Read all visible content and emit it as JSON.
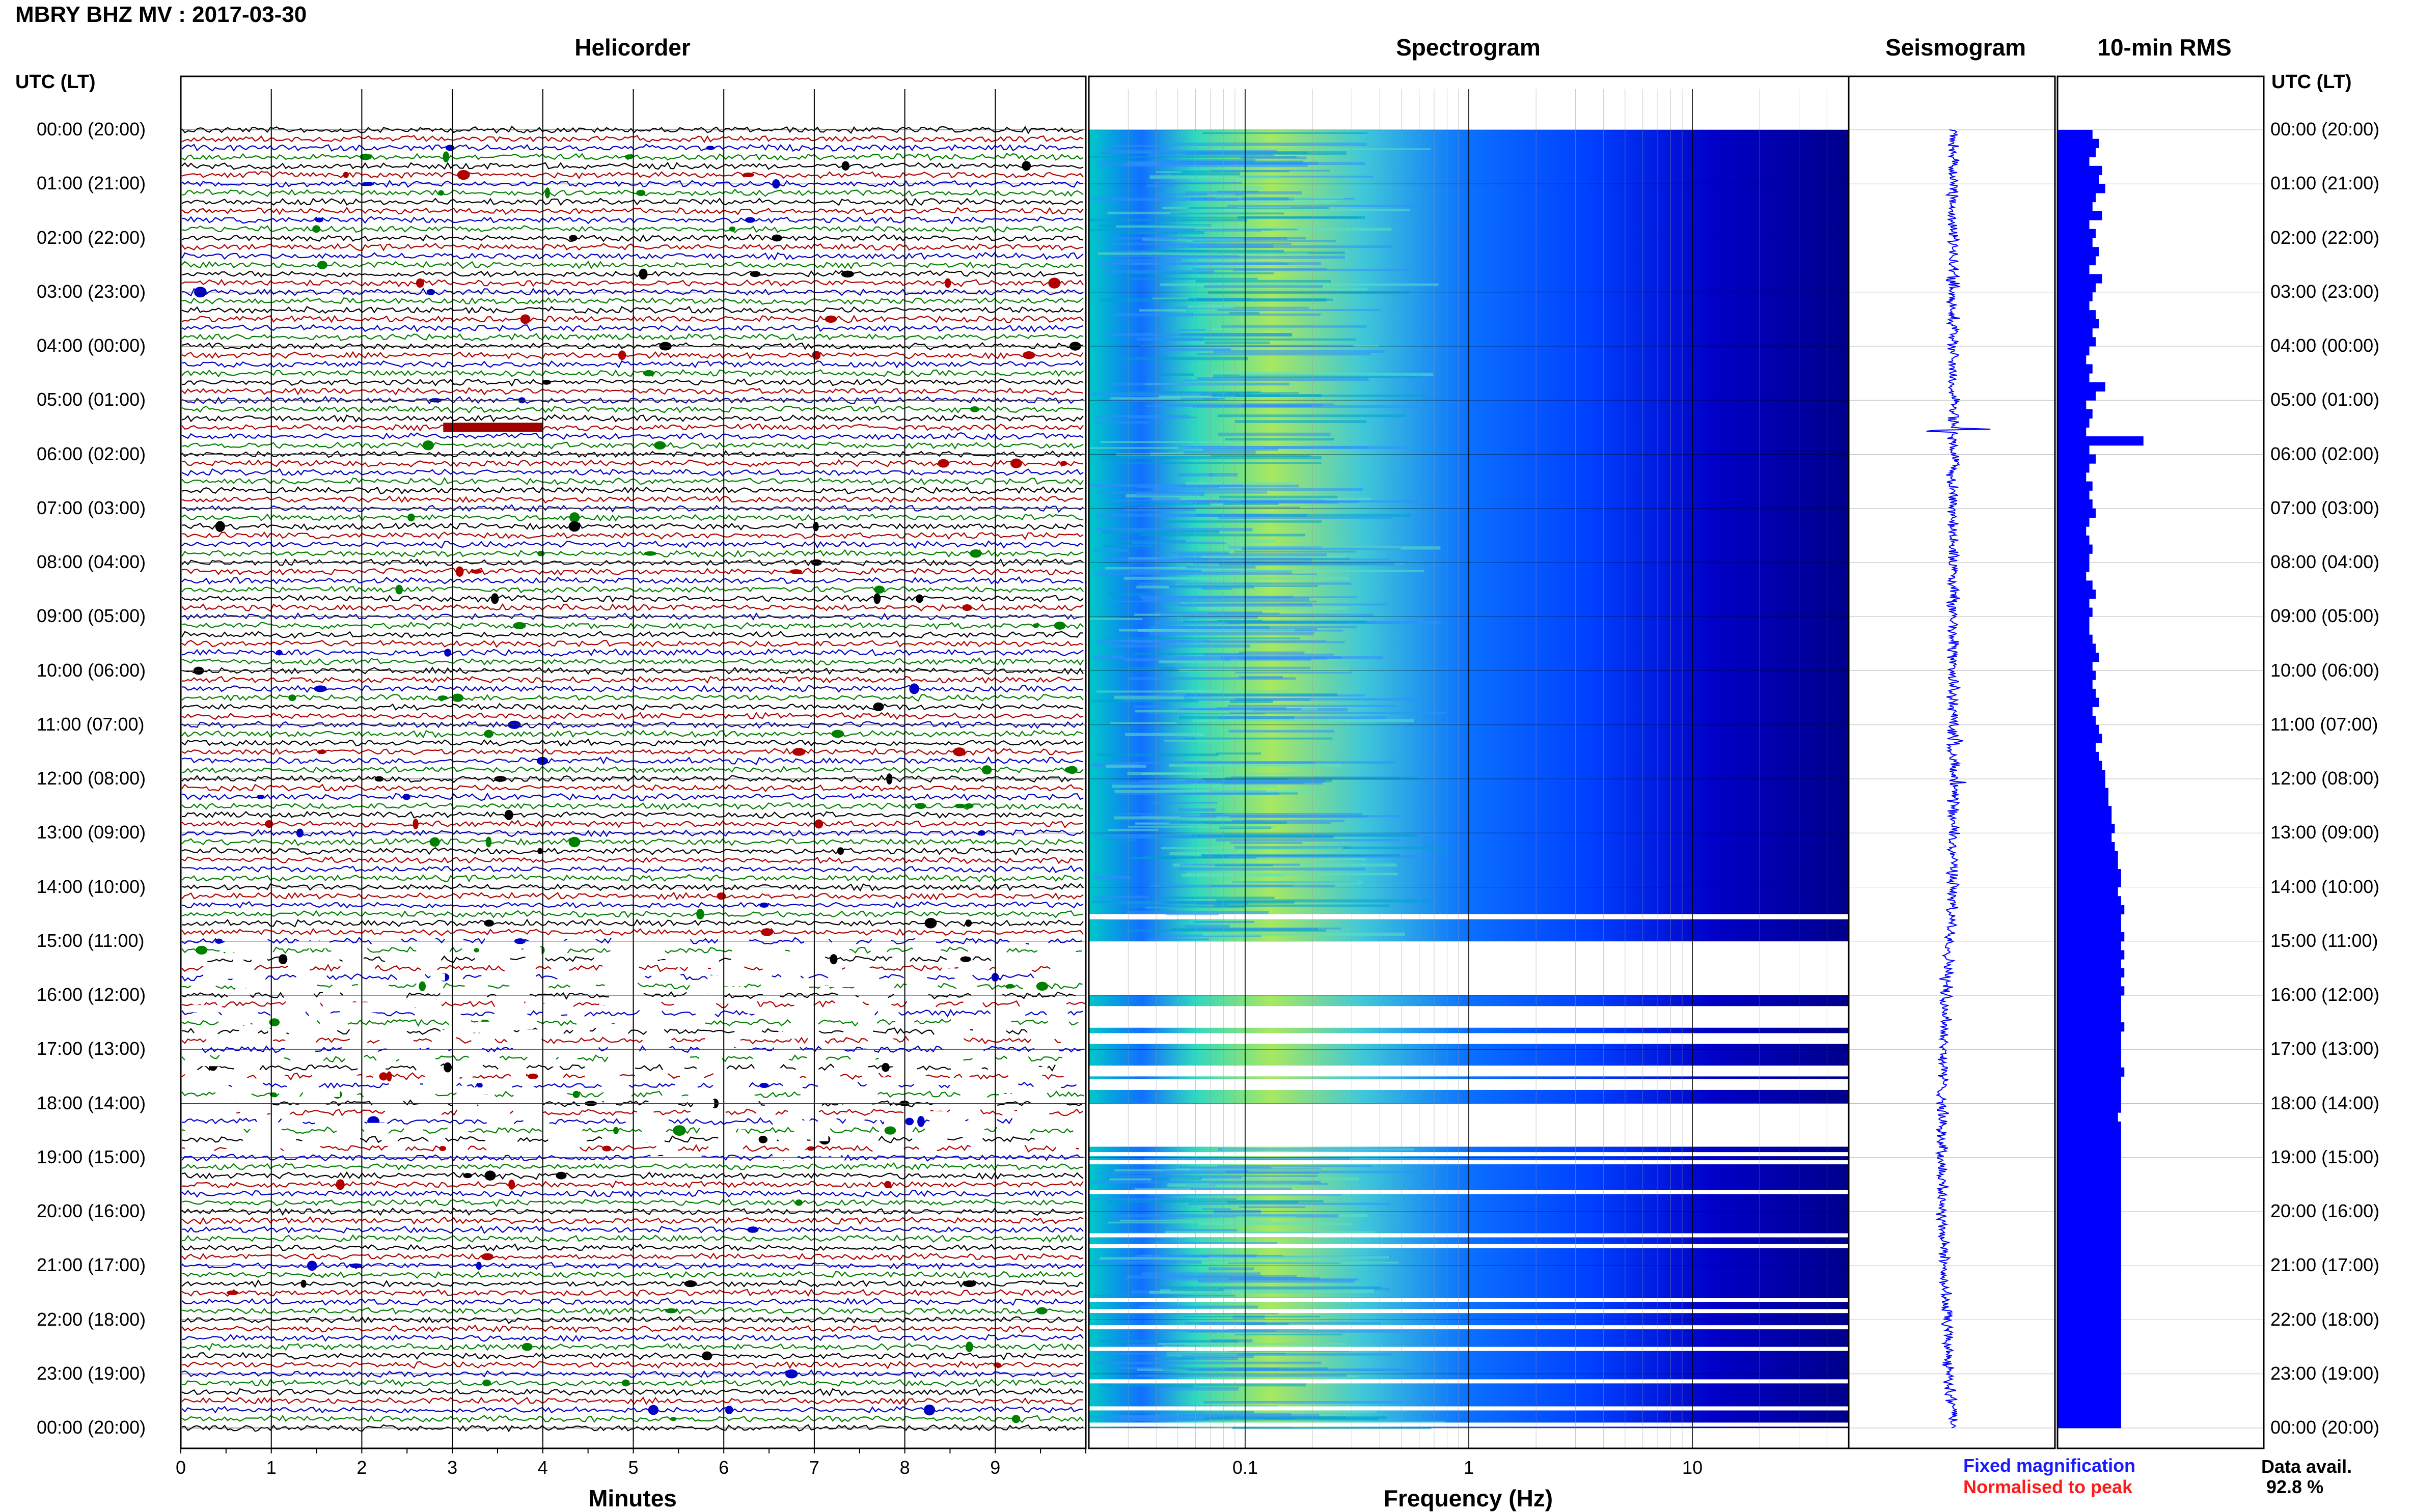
{
  "header": {
    "station_title": "MBRY BHZ MV : 2017-03-30",
    "utc_label_left": "UTC (LT)",
    "utc_label_right": "UTC (LT)"
  },
  "panels": {
    "helicorder": "Helicorder",
    "spectrogram": "Spectrogram",
    "seismogram": "Seismogram",
    "rms": "10-min RMS"
  },
  "axes": {
    "minutes_label": "Minutes",
    "minutes_ticks": [
      "0",
      "1",
      "2",
      "3",
      "4",
      "5",
      "6",
      "7",
      "8",
      "9"
    ],
    "frequency_label": "Frequency (Hz)",
    "frequency_ticks": [
      "0.1",
      "1",
      "10"
    ]
  },
  "time_labels": [
    "00:00 (20:00)",
    "01:00 (21:00)",
    "02:00 (22:00)",
    "03:00 (23:00)",
    "04:00 (00:00)",
    "05:00 (01:00)",
    "06:00 (02:00)",
    "07:00 (03:00)",
    "08:00 (04:00)",
    "09:00 (05:00)",
    "10:00 (06:00)",
    "11:00 (07:00)",
    "12:00 (08:00)",
    "13:00 (09:00)",
    "14:00 (10:00)",
    "15:00 (11:00)",
    "16:00 (12:00)",
    "17:00 (13:00)",
    "18:00 (14:00)",
    "19:00 (15:00)",
    "20:00 (16:00)",
    "21:00 (17:00)",
    "22:00 (18:00)",
    "23:00 (19:00)",
    "00:00 (20:00)"
  ],
  "legend": {
    "fixed": "Fixed magnification",
    "normalised": "Normalised to peak",
    "data_avail_label": "Data avail.",
    "data_avail_value": "92.8 %"
  },
  "colors": {
    "trace_colors": [
      "#000000",
      "#b00000",
      "#0000c8",
      "#008000"
    ],
    "rms_bar": "#0000ff",
    "seismogram": "#0000ff",
    "spectro_high": "#ffff00",
    "spectro_mid": "#00c0c0",
    "spectro_low": "#00008b"
  },
  "chart_data": {
    "type": "heatmap",
    "title": "MBRY BHZ MV : 2017-03-30",
    "helicorder": {
      "xlabel": "Minutes",
      "xlim": [
        0,
        10
      ],
      "rows_per_hour": 6,
      "hours": 24,
      "gap_hours_utc": [
        15,
        19
      ]
    },
    "spectrogram": {
      "xlabel": "Frequency (Hz)",
      "xscale": "log",
      "xlim": [
        0.02,
        50
      ],
      "gap_hours_utc": [
        15,
        16
      ]
    },
    "rms_10min": {
      "description_hours_utc": [
        0,
        24
      ],
      "values": [
        0.55,
        0.65,
        0.6,
        0.5,
        0.7,
        0.65,
        0.75,
        0.6,
        0.55,
        0.7,
        0.5,
        0.6,
        0.55,
        0.65,
        0.6,
        0.5,
        0.7,
        0.6,
        0.55,
        0.5,
        0.6,
        0.65,
        0.55,
        0.6,
        0.5,
        0.45,
        0.55,
        0.5,
        0.75,
        0.6,
        0.45,
        0.55,
        0.5,
        0.45,
        1.35,
        0.5,
        0.6,
        0.5,
        0.45,
        0.55,
        0.5,
        0.55,
        0.6,
        0.5,
        0.45,
        0.5,
        0.55,
        0.5,
        0.5,
        0.45,
        0.55,
        0.6,
        0.5,
        0.55,
        0.5,
        0.5,
        0.55,
        0.6,
        0.65,
        0.55,
        0.6,
        0.55,
        0.6,
        0.65,
        0.55,
        0.6,
        0.65,
        0.7,
        0.6,
        0.65,
        0.7,
        0.75,
        0.75,
        0.8,
        0.8,
        0.85,
        0.85,
        0.9,
        0.85,
        0.9,
        0.95,
        0.95,
        1.0,
        1.0,
        0.95,
        1.0,
        1.05,
        1.0,
        1.0,
        1.05,
        1.0,
        1.05,
        1.0,
        1.05,
        1.0,
        1.05,
        1.0,
        1.0,
        1.0,
        1.05,
        1.0,
        1.0,
        1.0,
        1.0,
        1.05,
        1.0,
        1.0,
        1.0,
        1.0,
        0.95,
        1.0,
        1.0,
        1.0,
        1.0,
        1.0,
        1.0,
        1.0,
        1.0,
        1.0,
        1.0,
        1.0,
        1.0,
        1.0,
        1.0,
        1.0,
        1.0,
        1.0,
        1.0,
        1.0,
        1.0,
        1.0,
        1.0,
        1.0,
        1.0,
        1.0,
        1.0,
        1.0,
        1.0,
        1.0,
        1.0,
        1.0,
        1.0,
        1.0,
        1.0
      ]
    }
  }
}
